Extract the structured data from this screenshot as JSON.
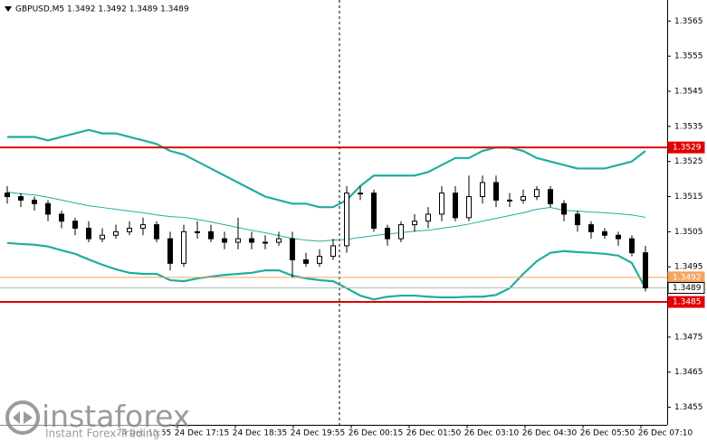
{
  "chart_data": {
    "type": "candlestick",
    "title": "GBPUSD,M5  1.3492 1.3492 1.3489 1.3489",
    "ylim": [
      1.345,
      1.3571
    ],
    "yticks": [
      1.3565,
      1.3555,
      1.3545,
      1.3535,
      1.3525,
      1.3515,
      1.3505,
      1.3495,
      1.3475,
      1.3465,
      1.3455
    ],
    "xlabels": [
      "24 Dec 15:55",
      "24 Dec 17:15",
      "24 Dec 18:35",
      "24 Dec 19:55",
      "26 Dec 00:15",
      "26 Dec 01:50",
      "26 Dec 03:10",
      "26 Dec 04:30",
      "26 Dec 05:50",
      "26 Dec 07:10"
    ],
    "bull_color": "#ffffff",
    "bear_color": "#000000",
    "candles": {
      "open": [
        1.3516,
        1.3515,
        1.3514,
        1.3513,
        1.351,
        1.3508,
        1.3506,
        1.3503,
        1.3504,
        1.3505,
        1.3506,
        1.3507,
        1.3503,
        1.3496,
        1.3505,
        1.3505,
        1.3503,
        1.3502,
        1.3503,
        1.3502,
        1.3502,
        1.3503,
        1.3497,
        1.3496,
        1.3498,
        1.3501,
        1.3516,
        1.3516,
        1.3506,
        1.3503,
        1.3507,
        1.3508,
        1.351,
        1.3516,
        1.3509,
        1.3515,
        1.3519,
        1.3514,
        1.3514,
        1.3515,
        1.3517,
        1.3513,
        1.351,
        1.3507,
        1.3505,
        1.3504,
        1.3503,
        1.3499
      ],
      "high": [
        1.3518,
        1.3516,
        1.3515,
        1.3514,
        1.3511,
        1.3509,
        1.3508,
        1.3506,
        1.3507,
        1.3508,
        1.3509,
        1.3508,
        1.3505,
        1.3507,
        1.3508,
        1.3507,
        1.3505,
        1.3509,
        1.3505,
        1.3504,
        1.3505,
        1.3505,
        1.3499,
        1.35,
        1.3503,
        1.3518,
        1.3518,
        1.3517,
        1.3507,
        1.3508,
        1.351,
        1.3512,
        1.3518,
        1.3518,
        1.3521,
        1.3521,
        1.3521,
        1.3516,
        1.3517,
        1.3518,
        1.3518,
        1.3514,
        1.3511,
        1.3508,
        1.3506,
        1.3505,
        1.3504,
        1.3501
      ],
      "low": [
        1.3513,
        1.3512,
        1.3511,
        1.3508,
        1.3506,
        1.3504,
        1.3502,
        1.3502,
        1.3503,
        1.3504,
        1.3504,
        1.3502,
        1.3494,
        1.3495,
        1.3503,
        1.3502,
        1.35,
        1.35,
        1.35,
        1.35,
        1.3501,
        1.3492,
        1.3495,
        1.3495,
        1.3497,
        1.3499,
        1.3514,
        1.3505,
        1.3501,
        1.3502,
        1.3505,
        1.3506,
        1.3508,
        1.3508,
        1.3508,
        1.3513,
        1.3512,
        1.3512,
        1.3513,
        1.3514,
        1.3512,
        1.3508,
        1.3505,
        1.3503,
        1.3503,
        1.3501,
        1.3498,
        1.3488
      ],
      "close": [
        1.3515,
        1.3514,
        1.3513,
        1.351,
        1.3508,
        1.3506,
        1.3503,
        1.3504,
        1.3505,
        1.3506,
        1.3507,
        1.3503,
        1.3496,
        1.3505,
        1.3505,
        1.3503,
        1.3502,
        1.3503,
        1.3502,
        1.3502,
        1.3503,
        1.3497,
        1.3496,
        1.3498,
        1.3501,
        1.3516,
        1.3516,
        1.3506,
        1.3503,
        1.3507,
        1.3508,
        1.351,
        1.3516,
        1.3509,
        1.3515,
        1.3519,
        1.3514,
        1.3514,
        1.3515,
        1.3517,
        1.3513,
        1.351,
        1.3507,
        1.3505,
        1.3504,
        1.3503,
        1.3499,
        1.3489
      ]
    },
    "indicators": [
      {
        "color": "#1fae9e",
        "values": [
          1.3532,
          1.3532,
          1.3532,
          1.3531,
          1.3532,
          1.3533,
          1.3534,
          1.3533,
          1.3533,
          1.3532,
          1.3531,
          1.353,
          1.3528,
          1.3527,
          1.3525,
          1.3523,
          1.3521,
          1.3519,
          1.3517,
          1.3515,
          1.3514,
          1.3513,
          1.3513,
          1.3512,
          1.3512,
          1.3514,
          1.3518,
          1.3521,
          1.3521,
          1.3521,
          1.3521,
          1.3522,
          1.3524,
          1.3526,
          1.3526,
          1.3528,
          1.3529,
          1.3529,
          1.3528,
          1.3526,
          1.3525,
          1.3524,
          1.3523,
          1.3523,
          1.3523,
          1.3524,
          1.3525,
          1.3528
        ]
      },
      {
        "color": "#1fae9e",
        "values": [
          1.35163,
          1.35158,
          1.35155,
          1.35148,
          1.3514,
          1.35132,
          1.35124,
          1.35119,
          1.35114,
          1.35109,
          1.35104,
          1.35098,
          1.35093,
          1.35091,
          1.35085,
          1.35078,
          1.3507,
          1.35062,
          1.35054,
          1.35047,
          1.35039,
          1.35031,
          1.35026,
          1.35023,
          1.35026,
          1.35028,
          1.35034,
          1.35039,
          1.35044,
          1.35047,
          1.35052,
          1.35054,
          1.3506,
          1.35065,
          1.35072,
          1.3508,
          1.35088,
          1.35096,
          1.35104,
          1.35114,
          1.35119,
          1.35111,
          1.35109,
          1.35106,
          1.35104,
          1.35101,
          1.35098,
          1.35091
        ]
      },
      {
        "color": "#1fae9e",
        "values": [
          1.35018,
          1.35015,
          1.35013,
          1.35008,
          1.34997,
          1.34987,
          1.34971,
          1.34956,
          1.34943,
          1.34933,
          1.3493,
          1.3493,
          1.34912,
          1.34909,
          1.34917,
          1.34922,
          1.34927,
          1.3493,
          1.34933,
          1.3494,
          1.3494,
          1.34925,
          1.34917,
          1.34912,
          1.34909,
          1.34889,
          1.34868,
          1.34857,
          1.34865,
          1.34868,
          1.34868,
          1.34865,
          1.34863,
          1.34863,
          1.34865,
          1.34865,
          1.3487,
          1.34889,
          1.3493,
          1.34966,
          1.3499,
          1.34995,
          1.34992,
          1.3499,
          1.34987,
          1.34982,
          1.34961,
          1.34889
        ]
      }
    ],
    "levels": [
      {
        "value": 1.3529,
        "label": "1.3529",
        "color": "#e10000",
        "style": "level"
      },
      {
        "value": 1.3485,
        "label": "1.3485",
        "color": "#e10000",
        "style": "level"
      },
      {
        "value": 1.3492,
        "label": "1.3492",
        "color": "#f4a460",
        "style": "bid"
      },
      {
        "value": 1.3489,
        "label": "1.3489",
        "color": "#b8b8b8",
        "style": "current"
      }
    ]
  },
  "watermark": {
    "brand": "instaforex",
    "tagline": "Instant Forex Trading"
  }
}
